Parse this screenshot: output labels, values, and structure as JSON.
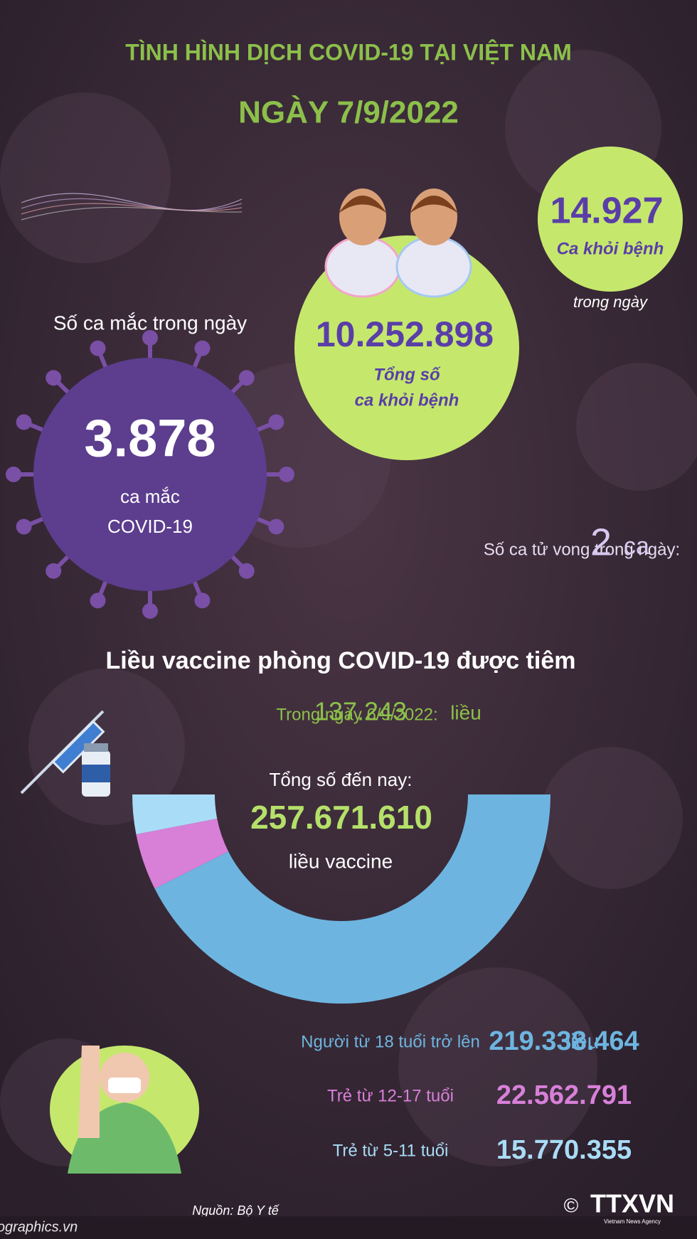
{
  "header": {
    "title": "TÌNH HÌNH DỊCH COVID-19 TẠI VIỆT NAM",
    "date": "NGÀY 7/9/2022"
  },
  "cases": {
    "heading": "Số ca mắc trong ngày",
    "value": "3.878",
    "unit_line1": "ca mắc",
    "unit_line2": "COVID-19"
  },
  "recoveries_total": {
    "value": "10.252.898",
    "label_line1": "Tổng số",
    "label_line2": "ca khỏi bệnh"
  },
  "recoveries_today": {
    "value": "14.927",
    "label": "Ca khỏi bệnh",
    "note": "trong ngày"
  },
  "deaths": {
    "label": "Số ca tử vong trong ngày:",
    "value": "2",
    "unit": "ca"
  },
  "vaccine": {
    "heading": "Liều vaccine phòng COVID-19 được tiêm",
    "daily_label": "Trong ngày 6/9/2022:",
    "daily_value": "137.243",
    "daily_unit": "liều",
    "total_label": "Tổng số đến nay:",
    "total_value": "257.671.610",
    "total_unit": "liều vaccine",
    "row_unit": "liều"
  },
  "chart_data": {
    "type": "donut",
    "categories": [
      "Người từ 18 tuổi trở lên",
      "Trẻ từ 12-17 tuổi",
      "Trẻ từ 5-11 tuổi"
    ],
    "values": [
      219338464,
      22562791,
      15770355
    ],
    "value_labels": [
      "219.338.464",
      "22.562.791",
      "15.770.355"
    ],
    "colors": [
      "#6db5e0",
      "#d880d8",
      "#a9dcf6"
    ]
  },
  "footer": {
    "source": "Nguồn: Bộ Y tế",
    "url": "https://infographics.vn",
    "copyright": "©",
    "logo": "TTXVN",
    "agency": "Vietnam News Agency"
  }
}
